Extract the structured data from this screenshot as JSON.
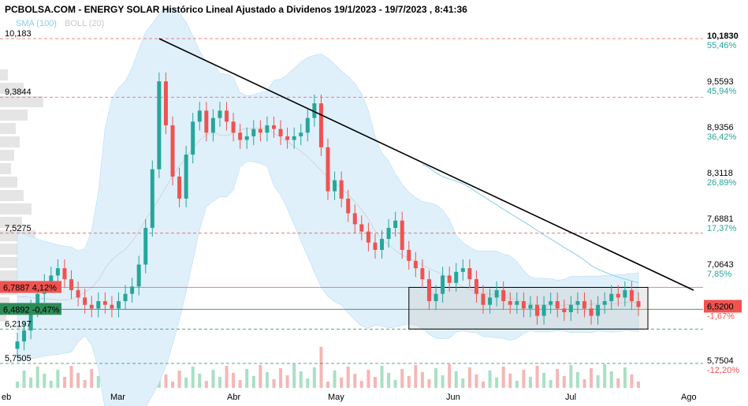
{
  "title": "PCBOLSA.COM - ENERGY SOLAR Histórico Lineal Ajustado a Dividenos 19/1/2023 - 19/7/2023 , 8:41:36",
  "legend": {
    "sma_label": "SMA (100)",
    "boll_label": "BOLL (20)",
    "sma_color": "#87ceeb",
    "boll_color": "#c8c8c8"
  },
  "colors": {
    "up": "#26a69a",
    "down": "#ef5350",
    "band_fill": "#dff0fb",
    "trendline": "#000000",
    "ref_line": "#e06060",
    "support_line": "#2e8b57"
  },
  "chart_data": {
    "type": "candlestick",
    "title": "PCBOLSA.COM - ENERGY SOLAR Histórico Lineal Ajustado a Dividenos 19/1/2023 - 19/7/2023 , 8:41:36",
    "x_ticks": [
      "eb",
      "Mar",
      "Abr",
      "May",
      "Jun",
      "Jul",
      "Ago"
    ],
    "y_ticks_right": [
      {
        "value": "10,1830",
        "pct": "55,46%"
      },
      {
        "value": "9,5593",
        "pct": "45,94%"
      },
      {
        "value": "8,9356",
        "pct": "36,42%"
      },
      {
        "value": "8,3118",
        "pct": "26,89%"
      },
      {
        "value": "7,6881",
        "pct": "17,37%"
      },
      {
        "value": "7,0643",
        "pct": "7,85%"
      },
      {
        "value": "6,5200",
        "pct": "-1,67%"
      },
      {
        "value": "5,7504",
        "pct": "-12,20%"
      }
    ],
    "left_levels": [
      {
        "value": "10,183"
      },
      {
        "value": "9,3844"
      },
      {
        "value": "7,5275"
      },
      {
        "value": "6,7887",
        "pct": "4,12%"
      },
      {
        "value": "6,4892",
        "pct": "-0,47%"
      },
      {
        "value": "6,2197"
      },
      {
        "value": "5,7505"
      }
    ],
    "last_price": "6,5200",
    "ylim": [
      5.6,
      10.35
    ],
    "series": [
      {
        "close": 6.05
      },
      {
        "close": 6.2
      },
      {
        "close": 6.5
      },
      {
        "close": 6.7
      },
      {
        "close": 6.85
      },
      {
        "close": 6.95
      },
      {
        "close": 7.05
      },
      {
        "close": 6.9
      },
      {
        "close": 6.75
      },
      {
        "close": 6.65
      },
      {
        "close": 6.55
      },
      {
        "close": 6.5
      },
      {
        "close": 6.6
      },
      {
        "close": 6.55
      },
      {
        "close": 6.5
      },
      {
        "close": 6.6
      },
      {
        "close": 6.7
      },
      {
        "close": 6.8
      },
      {
        "close": 7.1
      },
      {
        "close": 7.6
      },
      {
        "close": 8.4
      },
      {
        "close": 9.6
      },
      {
        "close": 9.0
      },
      {
        "close": 8.3
      },
      {
        "close": 8.0
      },
      {
        "close": 8.6
      },
      {
        "close": 9.05
      },
      {
        "close": 9.2
      },
      {
        "close": 8.9
      },
      {
        "close": 9.1
      },
      {
        "close": 9.2
      },
      {
        "close": 9.05
      },
      {
        "close": 8.9
      },
      {
        "close": 8.8
      },
      {
        "close": 8.85
      },
      {
        "close": 8.95
      },
      {
        "close": 8.9
      },
      {
        "close": 9.0
      },
      {
        "close": 8.95
      },
      {
        "close": 8.85
      },
      {
        "close": 8.8
      },
      {
        "close": 8.85
      },
      {
        "close": 8.9
      },
      {
        "close": 9.1
      },
      {
        "close": 9.3
      },
      {
        "close": 8.7
      },
      {
        "close": 8.1
      },
      {
        "close": 8.25
      },
      {
        "close": 8.0
      },
      {
        "close": 7.8
      },
      {
        "close": 7.65
      },
      {
        "close": 7.55
      },
      {
        "close": 7.4
      },
      {
        "close": 7.3
      },
      {
        "close": 7.45
      },
      {
        "close": 7.6
      },
      {
        "close": 7.7
      },
      {
        "close": 7.3
      },
      {
        "close": 7.15
      },
      {
        "close": 7.05
      },
      {
        "close": 6.9
      },
      {
        "close": 6.6
      },
      {
        "close": 6.7
      },
      {
        "close": 6.95
      },
      {
        "close": 6.85
      },
      {
        "close": 7.0
      },
      {
        "close": 7.05
      },
      {
        "close": 6.9
      },
      {
        "close": 6.7
      },
      {
        "close": 6.55
      },
      {
        "close": 6.65
      },
      {
        "close": 6.75
      },
      {
        "close": 6.6
      },
      {
        "close": 6.55
      },
      {
        "close": 6.6
      },
      {
        "close": 6.5
      },
      {
        "close": 6.55
      },
      {
        "close": 6.4
      },
      {
        "close": 6.55
      },
      {
        "close": 6.6
      },
      {
        "close": 6.5
      },
      {
        "close": 6.45
      },
      {
        "close": 6.55
      },
      {
        "close": 6.6
      },
      {
        "close": 6.5
      },
      {
        "close": 6.4
      },
      {
        "close": 6.55
      },
      {
        "close": 6.6
      },
      {
        "close": 6.7
      },
      {
        "close": 6.65
      },
      {
        "close": 6.75
      },
      {
        "close": 6.6
      },
      {
        "close": 6.52
      }
    ]
  }
}
